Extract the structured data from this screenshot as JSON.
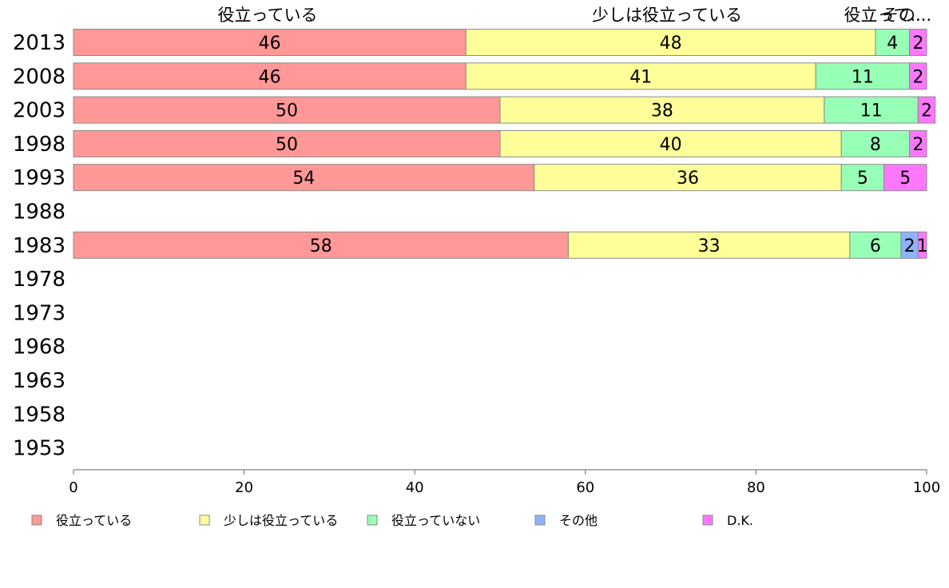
{
  "chart_data": {
    "type": "bar",
    "orientation": "horizontal",
    "stacked": true,
    "categories": [
      "2013",
      "2008",
      "2003",
      "1998",
      "1993",
      "1988",
      "1983",
      "1978",
      "1973",
      "1968",
      "1963",
      "1958",
      "1953"
    ],
    "series": [
      {
        "name": "役立っている",
        "color": "#ff9896",
        "values": [
          46,
          46,
          50,
          50,
          54,
          null,
          58,
          null,
          null,
          null,
          null,
          null,
          null
        ]
      },
      {
        "name": "少しは役立っている",
        "color": "#ffff99",
        "values": [
          48,
          41,
          38,
          40,
          36,
          null,
          33,
          null,
          null,
          null,
          null,
          null,
          null
        ]
      },
      {
        "name": "役立っていない",
        "color": "#98ffb7",
        "values": [
          4,
          11,
          11,
          8,
          5,
          null,
          6,
          null,
          null,
          null,
          null,
          null,
          null
        ]
      },
      {
        "name": "その他",
        "color": "#8fb4ff",
        "values": [
          0,
          0,
          0,
          0,
          0,
          null,
          2,
          null,
          null,
          null,
          null,
          null,
          null
        ]
      },
      {
        "name": "D.K.",
        "color": "#ff77ff",
        "values": [
          2,
          2,
          2,
          2,
          5,
          null,
          1,
          null,
          null,
          null,
          null,
          null,
          null
        ]
      }
    ],
    "top_labels": [
      "役立っている",
      "少しは役立っている",
      "役立って...",
      "その..."
    ],
    "xlim": [
      0,
      100
    ],
    "xticks": [
      0,
      20,
      40,
      60,
      80,
      100
    ],
    "legend_position": "bottom"
  }
}
